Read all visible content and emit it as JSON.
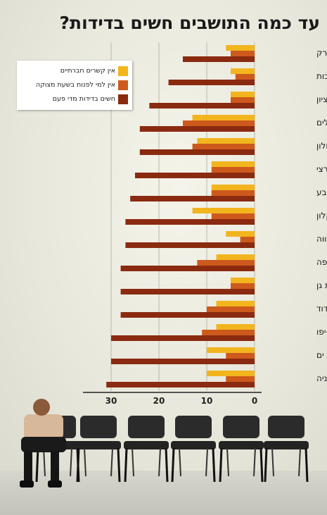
{
  "title": "עד כמה התושבים חשים בדידות?",
  "legend": {
    "position": "top-left",
    "items": [
      {
        "label": "אין קשרים חברתיים",
        "color": "#f2b51e"
      },
      {
        "label": "אין למי לפנות בשעת מצוקה",
        "color": "#cd5a1c"
      },
      {
        "label": "חשים בדידות מדי פעם",
        "color": "#8a2a10"
      }
    ]
  },
  "chart_data": {
    "type": "bar",
    "orientation": "horizontal",
    "x_direction": "right-to-left",
    "xlim": [
      0,
      35
    ],
    "xticks": [
      0,
      10,
      20,
      30
    ],
    "grid": true,
    "categories": [
      "בני ברק",
      "רחובות",
      "ראשון לציון",
      "ירושלים",
      "חולון",
      "ממוצע ארצי",
      "באר שבע",
      "אשקלון",
      "פתח תקווה",
      "חיפה",
      "רמת גן",
      "אשדוד",
      "תל אביב-יפו",
      "בת ים",
      "נתניה"
    ],
    "series": [
      {
        "name": "אין קשרים חברתיים",
        "color": "#f2b51e",
        "values": [
          6,
          5,
          5,
          13,
          12,
          9,
          9,
          13,
          6,
          8,
          5,
          8,
          8,
          10,
          10
        ]
      },
      {
        "name": "אין למי לפנות בשעת מצוקה",
        "color": "#cd5a1c",
        "values": [
          5,
          4,
          5,
          15,
          13,
          9,
          9,
          9,
          3,
          12,
          5,
          10,
          11,
          6,
          6
        ]
      },
      {
        "name": "חשים בדידות מדי פעם",
        "color": "#8a2a10",
        "values": [
          15,
          18,
          22,
          24,
          24,
          25,
          26,
          27,
          27,
          28,
          28,
          28,
          30,
          30,
          31
        ]
      }
    ]
  }
}
